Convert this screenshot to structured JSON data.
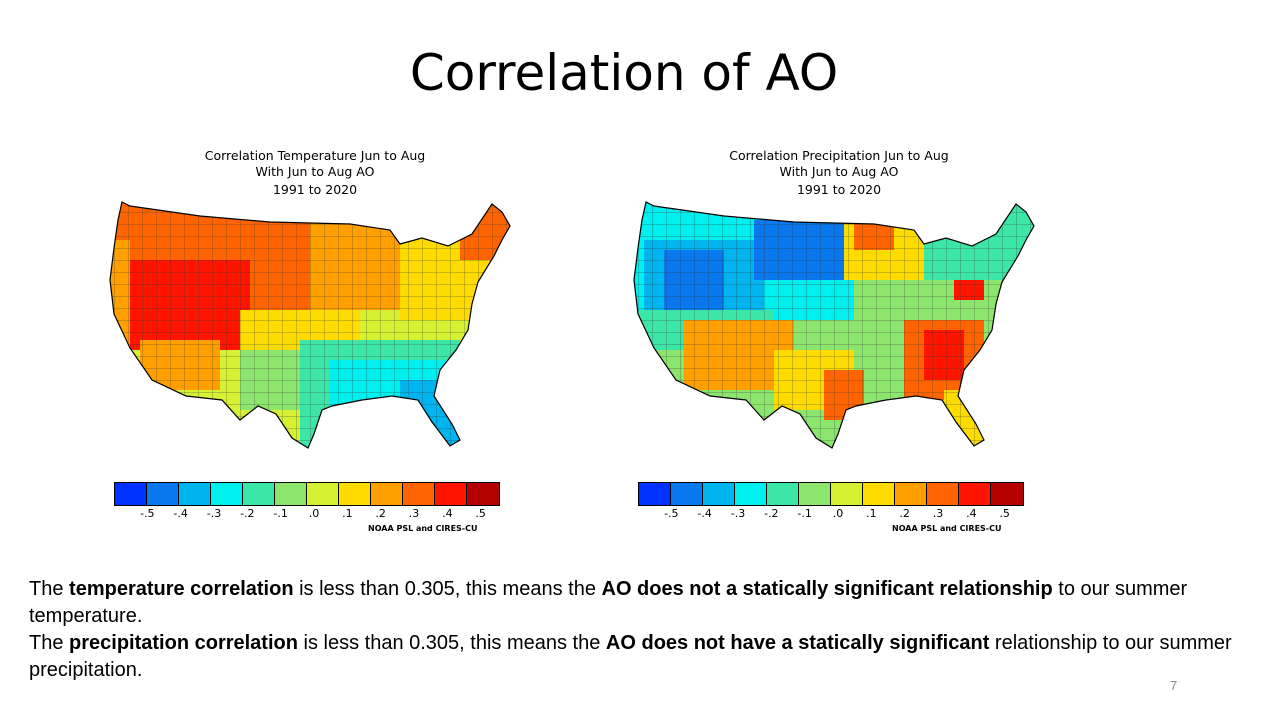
{
  "slide": {
    "title": "Correlation of AO",
    "page_number": "7"
  },
  "maps": [
    {
      "title_line1": "Correlation Temperature Jun to Aug",
      "title_line2": "With Jun to Aug AO",
      "years": "1991 to 2020",
      "credit": "NOAA PSL and CIRES-CU"
    },
    {
      "title_line1": "Correlation Precipitation Jun to Aug",
      "title_line2": "With Jun to Aug AO",
      "years": "1991 to 2020",
      "credit": "NOAA PSL and CIRES-CU"
    }
  ],
  "colorbar": {
    "colors": [
      "#0033ff",
      "#0a78ef",
      "#00b4f0",
      "#00f0f0",
      "#3ce6a6",
      "#8ce66e",
      "#d6f032",
      "#ffdc00",
      "#ffa000",
      "#ff6400",
      "#ff1400",
      "#b40000"
    ],
    "tick_labels": [
      "-.5",
      "-.4",
      "-.3",
      "-.2",
      "-.1",
      ".0",
      ".1",
      ".2",
      ".3",
      ".4",
      ".5"
    ]
  },
  "text": {
    "p1_a": "The ",
    "p1_b": "temperature correlation",
    "p1_c": " is less than 0.305, this means the ",
    "p1_d": "AO does not a statically significant relationship",
    "p1_e": " to our summer temperature.",
    "p2_a": "The ",
    "p2_b": "precipitation correlation",
    "p2_c": " is less than 0.305, this means the ",
    "p2_d": "AO does not have a statically significant",
    "p2_e": " relationship to our summer precipitation."
  }
}
